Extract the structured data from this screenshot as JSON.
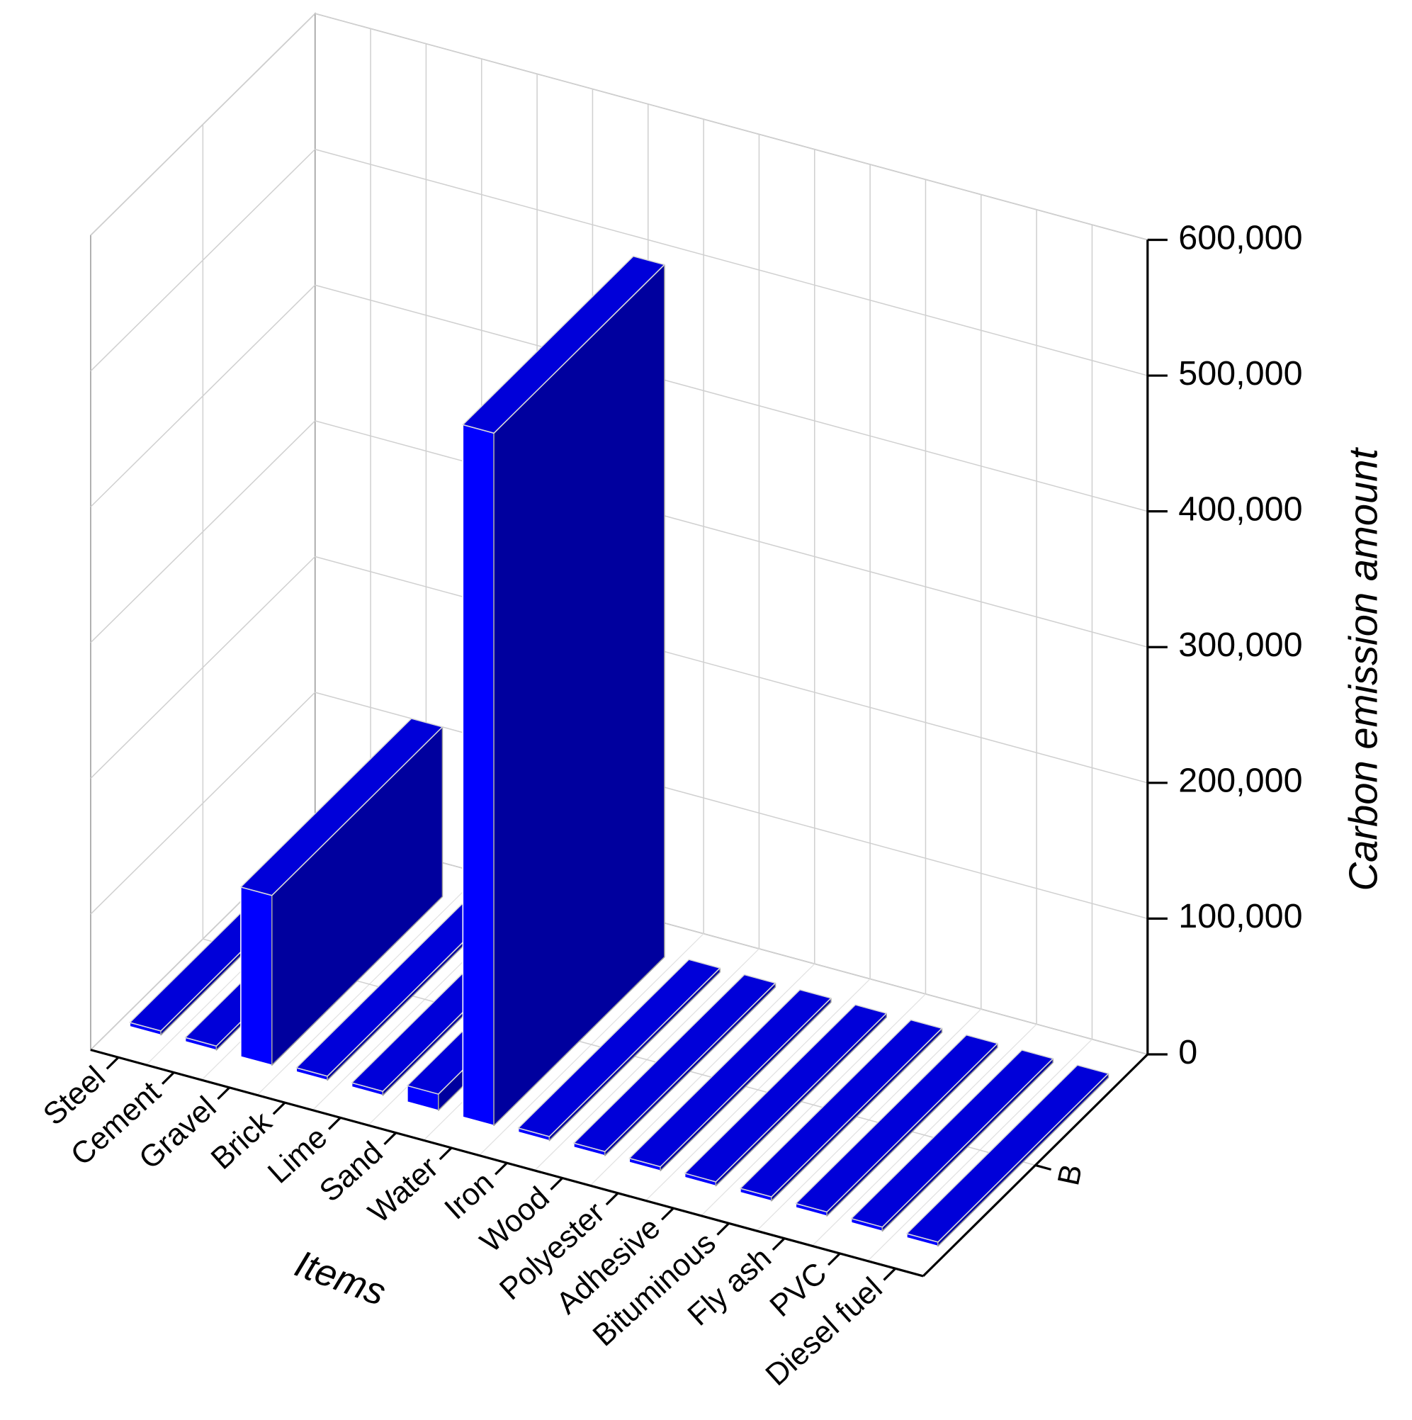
{
  "chart_data": {
    "type": "bar3d",
    "categories": [
      "Steel",
      "Cement",
      "Gravel",
      "Brick",
      "Lime",
      "Sand",
      "Water",
      "Iron",
      "Wood",
      "Polyester",
      "Adhesive",
      "Bituminous",
      "Fly ash",
      "PVC",
      "Diesel fuel"
    ],
    "series": [
      {
        "name": "B",
        "color": "#0000ff",
        "values": [
          3000,
          3000,
          125000,
          3000,
          3000,
          12000,
          510000,
          3000,
          3000,
          3000,
          3000,
          3000,
          3000,
          3000,
          3000
        ]
      }
    ],
    "x_label": "Items",
    "y_label": "Carbon emission amount",
    "ylim": [
      0,
      600000
    ],
    "yticks": [
      0,
      {
        "value": 100000,
        "label": "100,000"
      },
      {
        "value": 200000,
        "label": "200,000"
      },
      {
        "value": 300000,
        "label": "300,000"
      },
      {
        "value": 400000,
        "label": "400,000"
      },
      {
        "value": 500000,
        "label": "500,000"
      },
      {
        "value": 600000,
        "label": "600,000"
      }
    ],
    "grid": true
  }
}
